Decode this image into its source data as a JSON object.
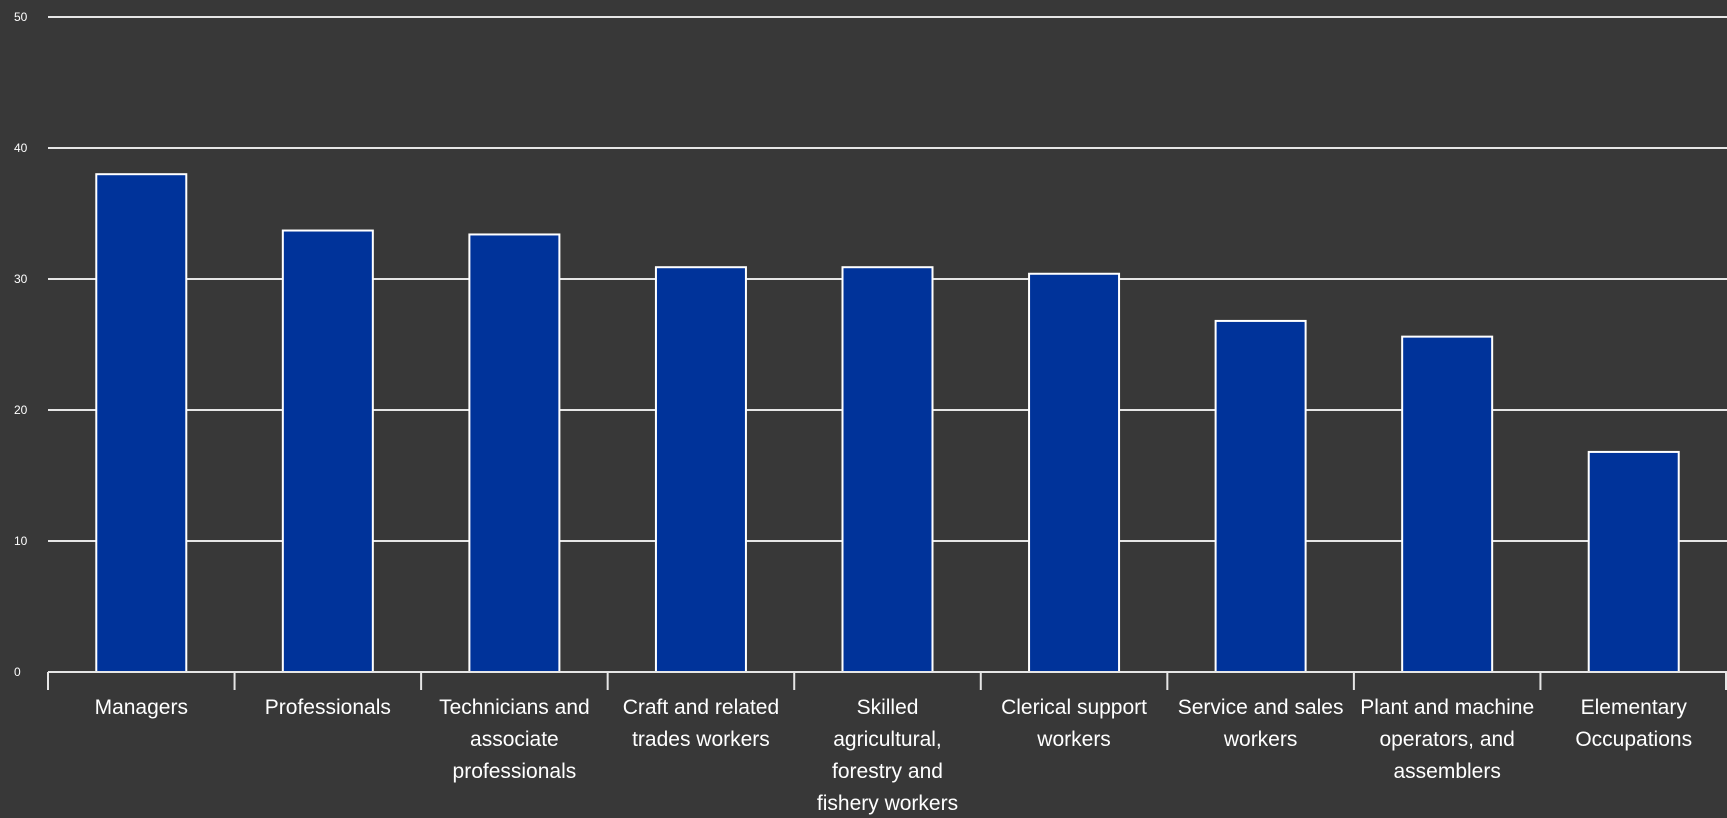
{
  "chart_data": {
    "type": "bar",
    "categories": [
      "Managers",
      "Professionals",
      "Technicians and associate professionals",
      "Craft and related trades workers",
      "Skilled agricultural, forestry and fishery workers",
      "Clerical support workers",
      "Service and sales workers",
      "Plant and machine operators, and assemblers",
      "Elementary Occupations"
    ],
    "category_lines": [
      [
        "Managers"
      ],
      [
        "Professionals"
      ],
      [
        "Technicians and",
        "associate",
        "professionals"
      ],
      [
        "Craft and related",
        "trades workers"
      ],
      [
        "Skilled",
        "agricultural,",
        "forestry and",
        "fishery workers"
      ],
      [
        "Clerical support",
        "workers"
      ],
      [
        "Service and sales",
        "workers"
      ],
      [
        "Plant and machine",
        "operators, and",
        "assemblers"
      ],
      [
        "Elementary",
        "Occupations"
      ]
    ],
    "values": [
      38.0,
      33.7,
      33.4,
      30.9,
      30.9,
      30.4,
      26.8,
      25.6,
      16.8
    ],
    "ylim": [
      0,
      50
    ],
    "yticks": [
      0,
      10,
      20,
      30,
      40,
      50
    ],
    "grid": true,
    "legend": "none",
    "title": "",
    "xlabel": "",
    "ylabel": "",
    "colors": {
      "bar_fill": "#00339a",
      "bar_stroke": "#ffffff",
      "background": "#383838",
      "grid": "#e6e6e6",
      "text": "#ffffff"
    }
  }
}
